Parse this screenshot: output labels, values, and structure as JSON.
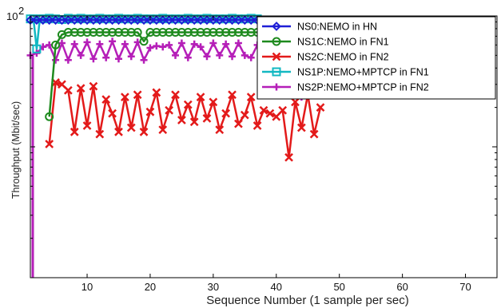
{
  "chart_data": {
    "type": "line",
    "xlabel": "Sequence Number (1 sample per sec)",
    "ylabel": "Throughput (Mbit/sec)",
    "y_top_tick_label": "10",
    "y_top_tick_exponent": "2",
    "xlim": [
      1,
      75
    ],
    "ylim": [
      1,
      100
    ],
    "yscale": "log",
    "x_ticks": [
      10,
      20,
      30,
      40,
      50,
      60,
      70
    ],
    "grid": false,
    "legend_position": "top-right",
    "series": [
      {
        "name": "NS0:NEMO in HN",
        "color": "#1f1fd6",
        "marker": "diamond",
        "points": [
          [
            1,
            93
          ],
          [
            2,
            93
          ],
          [
            3,
            93
          ],
          [
            4,
            93
          ],
          [
            5,
            93
          ],
          [
            6,
            93
          ],
          [
            7,
            93
          ],
          [
            8,
            93
          ],
          [
            9,
            93
          ],
          [
            10,
            93
          ],
          [
            11,
            93
          ],
          [
            12,
            93
          ],
          [
            13,
            93
          ],
          [
            14,
            93
          ],
          [
            15,
            93
          ],
          [
            16,
            93
          ],
          [
            17,
            93
          ],
          [
            18,
            93
          ],
          [
            19,
            93
          ],
          [
            20,
            93
          ],
          [
            21,
            93
          ],
          [
            22,
            93
          ],
          [
            23,
            93
          ],
          [
            24,
            93
          ],
          [
            25,
            93
          ],
          [
            26,
            93
          ],
          [
            27,
            93
          ],
          [
            28,
            93
          ],
          [
            29,
            93
          ],
          [
            30,
            93
          ],
          [
            31,
            93
          ],
          [
            32,
            93
          ],
          [
            33,
            93
          ],
          [
            34,
            93
          ],
          [
            35,
            93
          ],
          [
            36,
            93
          ],
          [
            37,
            93
          ]
        ]
      },
      {
        "name": "NS1C:NEMO in FN1",
        "color": "#1e8a1e",
        "marker": "circle",
        "points": [
          [
            4,
            17
          ],
          [
            5,
            60
          ],
          [
            6,
            72
          ],
          [
            7,
            75
          ],
          [
            8,
            75
          ],
          [
            9,
            75
          ],
          [
            10,
            75
          ],
          [
            11,
            75
          ],
          [
            12,
            75
          ],
          [
            13,
            75
          ],
          [
            14,
            75
          ],
          [
            15,
            75
          ],
          [
            16,
            75
          ],
          [
            17,
            75
          ],
          [
            18,
            75
          ],
          [
            19,
            64
          ],
          [
            20,
            75
          ],
          [
            21,
            75
          ],
          [
            22,
            75
          ],
          [
            23,
            75
          ],
          [
            24,
            75
          ],
          [
            25,
            75
          ],
          [
            26,
            75
          ],
          [
            27,
            75
          ],
          [
            28,
            75
          ],
          [
            29,
            75
          ],
          [
            30,
            75
          ],
          [
            31,
            75
          ],
          [
            32,
            75
          ],
          [
            33,
            75
          ],
          [
            34,
            75
          ],
          [
            35,
            75
          ],
          [
            36,
            75
          ],
          [
            37,
            75
          ]
        ]
      },
      {
        "name": "NS2C:NEMO in FN2",
        "color": "#e31a1a",
        "marker": "x",
        "points": [
          [
            4,
            10.5
          ],
          [
            5,
            31
          ],
          [
            6,
            30
          ],
          [
            7,
            27
          ],
          [
            8,
            13
          ],
          [
            9,
            28
          ],
          [
            10,
            14.5
          ],
          [
            11,
            29
          ],
          [
            12,
            12.5
          ],
          [
            13,
            23
          ],
          [
            14,
            18
          ],
          [
            15,
            13
          ],
          [
            16,
            24
          ],
          [
            17,
            14
          ],
          [
            18,
            25
          ],
          [
            19,
            13
          ],
          [
            20,
            18.5
          ],
          [
            21,
            26
          ],
          [
            22,
            13.5
          ],
          [
            23,
            19
          ],
          [
            24,
            25
          ],
          [
            25,
            16
          ],
          [
            26,
            21
          ],
          [
            27,
            15.5
          ],
          [
            28,
            24
          ],
          [
            29,
            16.5
          ],
          [
            30,
            22
          ],
          [
            31,
            13.5
          ],
          [
            32,
            18
          ],
          [
            33,
            25
          ],
          [
            34,
            15
          ],
          [
            35,
            17.5
          ],
          [
            36,
            24
          ],
          [
            37,
            14.5
          ],
          [
            38,
            19
          ],
          [
            39,
            18
          ],
          [
            40,
            17
          ],
          [
            41,
            19
          ],
          [
            42,
            8.3
          ],
          [
            43,
            22
          ],
          [
            44,
            14
          ],
          [
            45,
            25
          ],
          [
            46,
            12.5
          ],
          [
            47,
            20
          ]
        ]
      },
      {
        "name": "NS1P:NEMO+MPTCP in FN1",
        "color": "#12b8c2",
        "marker": "square",
        "points": [
          [
            1,
            95
          ],
          [
            1.5,
            95
          ],
          [
            2,
            56
          ],
          [
            2.5,
            95
          ],
          [
            3,
            95
          ],
          [
            4,
            96
          ],
          [
            5,
            95
          ],
          [
            6,
            94
          ],
          [
            7,
            96
          ],
          [
            8,
            95
          ],
          [
            9,
            96
          ],
          [
            10,
            95
          ],
          [
            11,
            95
          ],
          [
            12,
            96
          ],
          [
            13,
            95
          ],
          [
            14,
            95
          ],
          [
            15,
            96
          ],
          [
            16,
            95
          ],
          [
            17,
            95
          ],
          [
            18,
            96
          ],
          [
            19,
            95
          ],
          [
            20,
            95
          ],
          [
            21,
            95
          ],
          [
            22,
            96
          ],
          [
            23,
            95
          ],
          [
            24,
            95
          ],
          [
            25,
            95
          ],
          [
            26,
            96
          ],
          [
            27,
            95
          ],
          [
            28,
            95
          ],
          [
            29,
            96
          ],
          [
            30,
            95
          ],
          [
            31,
            95
          ],
          [
            32,
            95
          ],
          [
            33,
            96
          ],
          [
            34,
            95
          ],
          [
            35,
            95
          ],
          [
            36,
            96
          ],
          [
            37,
            95
          ]
        ]
      },
      {
        "name": "NS2P:NEMO+MPTCP in FN2",
        "color": "#b51fb8",
        "marker": "plus",
        "points": [
          [
            1,
            50
          ],
          [
            2,
            52
          ],
          [
            3,
            58
          ],
          [
            4,
            60
          ],
          [
            5,
            46
          ],
          [
            6,
            62
          ],
          [
            7,
            46
          ],
          [
            8,
            61
          ],
          [
            9,
            50
          ],
          [
            10,
            63
          ],
          [
            11,
            47
          ],
          [
            12,
            61
          ],
          [
            13,
            48
          ],
          [
            14,
            64
          ],
          [
            15,
            47
          ],
          [
            16,
            61
          ],
          [
            17,
            49
          ],
          [
            18,
            63
          ],
          [
            19,
            46
          ],
          [
            20,
            57
          ],
          [
            21,
            59
          ],
          [
            22,
            58
          ],
          [
            23,
            60
          ],
          [
            24,
            50
          ],
          [
            25,
            62
          ],
          [
            26,
            48
          ],
          [
            27,
            61
          ],
          [
            28,
            58
          ],
          [
            29,
            49
          ],
          [
            30,
            62
          ],
          [
            31,
            50
          ],
          [
            32,
            61
          ],
          [
            33,
            49
          ],
          [
            34,
            62
          ],
          [
            35,
            50
          ],
          [
            36,
            48
          ],
          [
            37,
            60
          ],
          [
            38,
            48
          ],
          [
            39,
            56
          ],
          [
            40,
            59
          ],
          [
            41,
            50
          ],
          [
            42,
            52
          ],
          [
            43,
            47
          ],
          [
            44,
            24
          ],
          [
            45,
            24
          ],
          [
            46,
            48
          ],
          [
            47,
            50
          ],
          [
            48,
            47
          ],
          [
            49,
            48
          ],
          [
            50,
            48
          ],
          [
            51,
            47
          ]
        ]
      }
    ],
    "initial_drop": {
      "color": "#b51fb8",
      "x": 1,
      "from": 50,
      "to": 1
    }
  }
}
